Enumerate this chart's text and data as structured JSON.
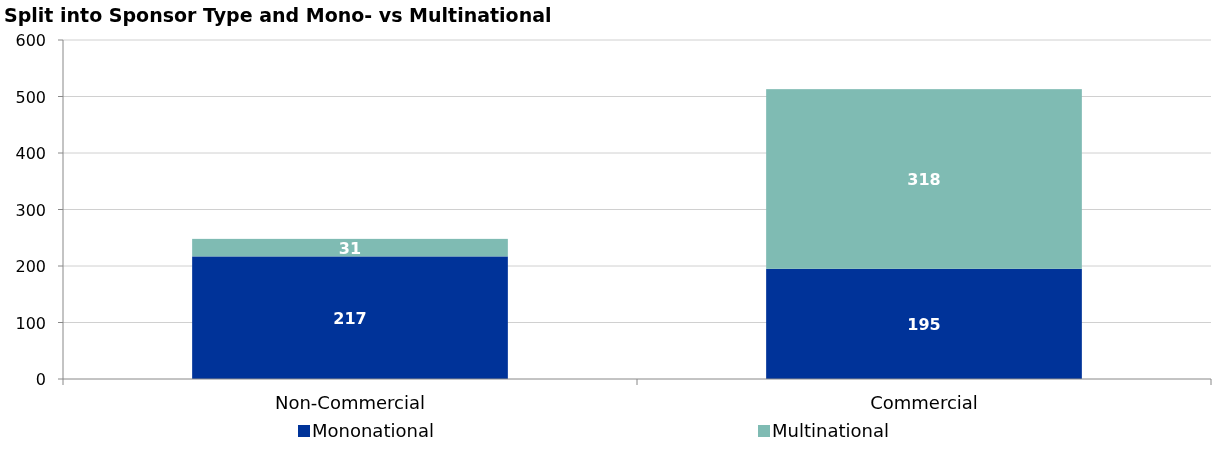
{
  "chart_data": {
    "type": "bar",
    "title": "Split into Sponsor Type and Mono- vs Multinational",
    "categories": [
      "Non-Commercial",
      "Commercial"
    ],
    "stacked": true,
    "series": [
      {
        "name": "Mononational",
        "color": "#003399",
        "values": [
          217,
          195
        ]
      },
      {
        "name": "Multinational",
        "color": "#7fbbb3",
        "values": [
          31,
          318
        ]
      }
    ],
    "ylim": [
      0,
      600
    ],
    "yticks": [
      0,
      100,
      200,
      300,
      400,
      500,
      600
    ],
    "grid": "y",
    "data_labels": true,
    "legend": "bottom"
  }
}
